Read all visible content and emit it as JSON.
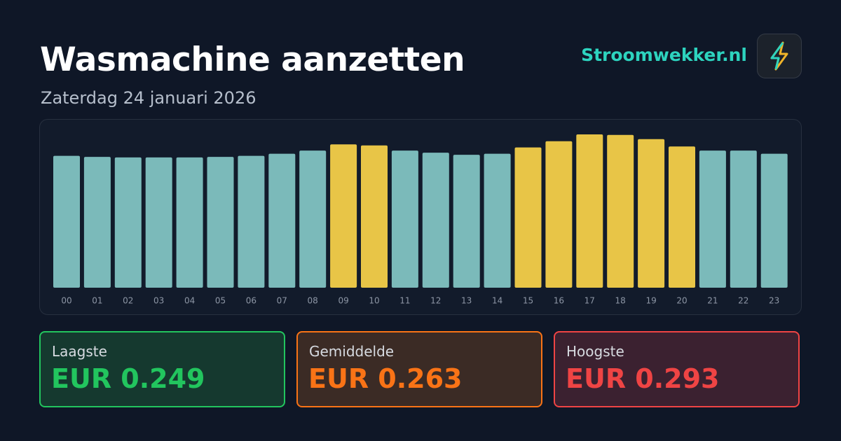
{
  "header": {
    "title": "Wasmachine aanzetten",
    "subtitle": "Zaterdag 24 januari 2026",
    "brand": "Stroomwekker.nl"
  },
  "chart_data": {
    "type": "bar",
    "categories": [
      "00",
      "01",
      "02",
      "03",
      "04",
      "05",
      "06",
      "07",
      "08",
      "09",
      "10",
      "11",
      "12",
      "13",
      "14",
      "15",
      "16",
      "17",
      "18",
      "19",
      "20",
      "21",
      "22",
      "23"
    ],
    "values": [
      0.252,
      0.25,
      0.249,
      0.249,
      0.249,
      0.25,
      0.252,
      0.256,
      0.262,
      0.274,
      0.272,
      0.262,
      0.258,
      0.254,
      0.256,
      0.268,
      0.28,
      0.293,
      0.292,
      0.284,
      0.27,
      0.262,
      0.262,
      0.256
    ],
    "colors": [
      "#7bbaba",
      "#7bbaba",
      "#7bbaba",
      "#7bbaba",
      "#7bbaba",
      "#7bbaba",
      "#7bbaba",
      "#7bbaba",
      "#7bbaba",
      "#e8c547",
      "#e8c547",
      "#7bbaba",
      "#7bbaba",
      "#7bbaba",
      "#7bbaba",
      "#e8c547",
      "#e8c547",
      "#e8c547",
      "#e8c547",
      "#e8c547",
      "#e8c547",
      "#7bbaba",
      "#7bbaba",
      "#7bbaba"
    ]
  },
  "stats": [
    {
      "label": "Laagste",
      "value": "EUR 0.249"
    },
    {
      "label": "Gemiddelde",
      "value": "EUR 0.263"
    },
    {
      "label": "Hoogste",
      "value": "EUR 0.293"
    }
  ]
}
